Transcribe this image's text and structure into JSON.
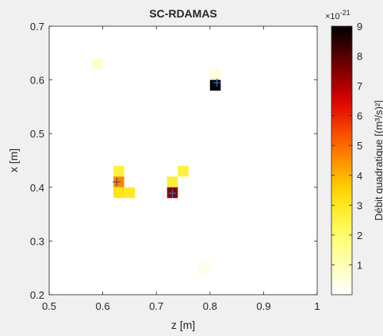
{
  "chart_data": {
    "type": "heatmap",
    "title": "SC-RDAMAS",
    "xlabel": "z [m]",
    "ylabel": "x [m]",
    "xlim": [
      0.5,
      1.0
    ],
    "ylim": [
      0.2,
      0.7
    ],
    "xticks": [
      "0.5",
      "0.6",
      "0.7",
      "0.8",
      "0.9",
      "1"
    ],
    "yticks": [
      "0.2",
      "0.3",
      "0.4",
      "0.5",
      "0.6",
      "0.7"
    ],
    "grid": false,
    "cell_size": [
      0.02,
      0.02
    ],
    "colormap": "hot-reversed",
    "colorbar": {
      "label": "Débit quadratique [(m³/s)²]",
      "exponent_label": "×10",
      "exponent_value": "-21",
      "range": [
        0,
        9
      ],
      "ticks": [
        "1",
        "2",
        "3",
        "4",
        "5",
        "6",
        "7",
        "8",
        "9"
      ]
    },
    "cells": [
      {
        "z": 0.59,
        "x": 0.63,
        "v": 0.7
      },
      {
        "z": 0.81,
        "x": 0.61,
        "v": 0.5
      },
      {
        "z": 0.81,
        "x": 0.59,
        "v": 9.0
      },
      {
        "z": 0.63,
        "x": 0.43,
        "v": 2.6
      },
      {
        "z": 0.63,
        "x": 0.41,
        "v": 4.6
      },
      {
        "z": 0.63,
        "x": 0.39,
        "v": 3.1
      },
      {
        "z": 0.65,
        "x": 0.39,
        "v": 2.9
      },
      {
        "z": 0.73,
        "x": 0.41,
        "v": 2.7
      },
      {
        "z": 0.75,
        "x": 0.43,
        "v": 2.6
      },
      {
        "z": 0.73,
        "x": 0.39,
        "v": 7.5
      },
      {
        "z": 0.79,
        "x": 0.25,
        "v": 0.35
      }
    ],
    "markers": [
      {
        "z": 0.813,
        "x": 0.595,
        "color": "#3a6ab0"
      },
      {
        "z": 0.626,
        "x": 0.41,
        "color": "#555555"
      },
      {
        "z": 0.73,
        "x": 0.389,
        "color": "#3a6ab0"
      }
    ]
  }
}
